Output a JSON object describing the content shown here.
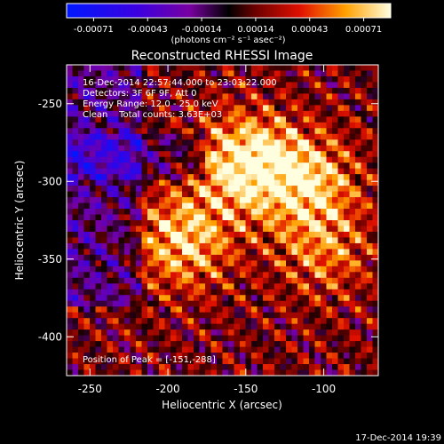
{
  "colorbar": {
    "ticks": [
      "-0.00071",
      "-0.00043",
      "-0.00014",
      "0.00014",
      "0.00043",
      "0.00071"
    ],
    "units_label": "(photons cm⁻² s⁻¹ asec⁻²)"
  },
  "footer_timestamp": "17-Dec-2014 19:39",
  "chart_data": {
    "type": "heatmap",
    "title": "Reconstructed RHESSI Image",
    "xlabel": "Heliocentric X (arcsec)",
    "ylabel": "Heliocentric Y (arcsec)",
    "xlim": [
      -265,
      -65
    ],
    "ylim": [
      -425,
      -225
    ],
    "xticks": [
      "-250",
      "-200",
      "-150",
      "-100"
    ],
    "xtick_values": [
      -250,
      -200,
      -150,
      -100
    ],
    "yticks": [
      "-250",
      "-300",
      "-350",
      "-400"
    ],
    "ytick_values": [
      -250,
      -300,
      -350,
      -400
    ],
    "color_scale_range": [
      -0.00071,
      0.00071
    ],
    "peak_position": [
      -151,
      -288
    ],
    "sources": [
      {
        "x": -190,
        "y": -338,
        "relative_intensity": 0.8
      },
      {
        "x": -150,
        "y": -288,
        "relative_intensity": 1.0
      },
      {
        "x": -110,
        "y": -300,
        "relative_intensity": 0.75
      },
      {
        "x": -100,
        "y": -345,
        "relative_intensity": 0.5
      }
    ],
    "annotations": [
      "16-Dec-2014 22:57:44.000 to 23:03:22.000",
      "Detectors: 3F 6F 9F, Att 0",
      "Energy Range: 12.0 - 25.0 keV",
      "Clean    Total counts: 3.63E+03"
    ],
    "peak_label": "Position of Peak = [-151,-288]"
  }
}
